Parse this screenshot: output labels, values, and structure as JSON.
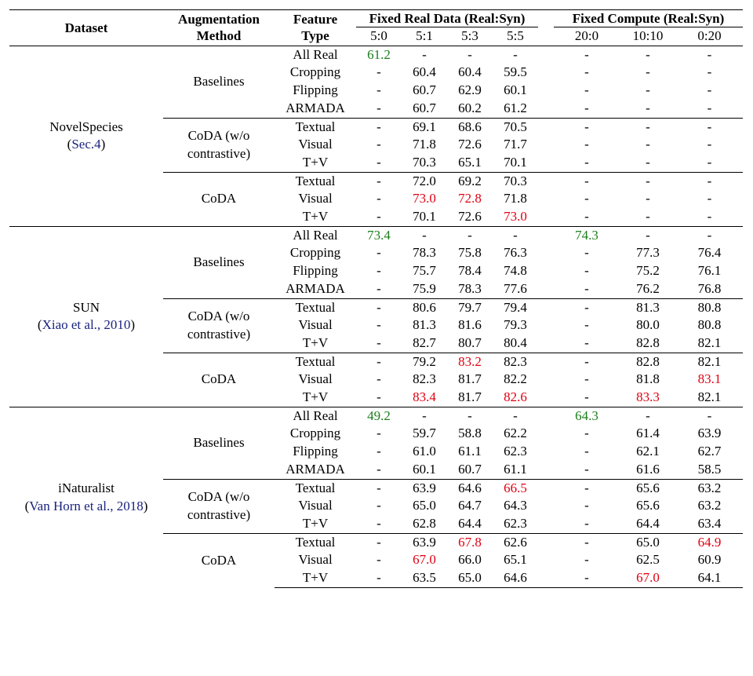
{
  "header": {
    "dataset": "Dataset",
    "augmentation": [
      "Augmentation",
      "Method"
    ],
    "feature": [
      "Feature",
      "Type"
    ],
    "fixed_real": "Fixed Real Data (Real:Syn)",
    "fixed_compute": "Fixed Compute (Real:Syn)",
    "ratios_real": [
      "5:0",
      "5:1",
      "5:3",
      "5:5"
    ],
    "ratios_compute": [
      "20:0",
      "10:10",
      "0:20"
    ]
  },
  "datasets": [
    {
      "name": "NovelSpecies",
      "cite_prefix": "(",
      "cite": "Sec.4",
      "cite_suffix": ")",
      "groups": [
        {
          "method": [
            "Baselines"
          ],
          "rows": [
            {
              "feature": "All Real",
              "cells": [
                {
                  "v": "61.2",
                  "s": "green"
                },
                {
                  "v": "-"
                },
                {
                  "v": "-"
                },
                {
                  "v": "-"
                },
                {
                  "v": "-"
                },
                {
                  "v": "-"
                },
                {
                  "v": "-"
                }
              ]
            },
            {
              "feature": "Cropping",
              "cells": [
                {
                  "v": "-"
                },
                {
                  "v": "60.4"
                },
                {
                  "v": "60.4"
                },
                {
                  "v": "59.5"
                },
                {
                  "v": "-"
                },
                {
                  "v": "-"
                },
                {
                  "v": "-"
                }
              ]
            },
            {
              "feature": "Flipping",
              "cells": [
                {
                  "v": "-"
                },
                {
                  "v": "60.7"
                },
                {
                  "v": "62.9"
                },
                {
                  "v": "60.1"
                },
                {
                  "v": "-"
                },
                {
                  "v": "-"
                },
                {
                  "v": "-"
                }
              ]
            },
            {
              "feature": "ARMADA",
              "cells": [
                {
                  "v": "-"
                },
                {
                  "v": "60.7"
                },
                {
                  "v": "60.2"
                },
                {
                  "v": "61.2"
                },
                {
                  "v": "-"
                },
                {
                  "v": "-"
                },
                {
                  "v": "-"
                }
              ]
            }
          ]
        },
        {
          "method": [
            "CoDA (w/o",
            "contrastive)"
          ],
          "rows": [
            {
              "feature": "Textual",
              "cells": [
                {
                  "v": "-"
                },
                {
                  "v": "69.1"
                },
                {
                  "v": "68.6"
                },
                {
                  "v": "70.5"
                },
                {
                  "v": "-"
                },
                {
                  "v": "-"
                },
                {
                  "v": "-"
                }
              ]
            },
            {
              "feature": "Visual",
              "cells": [
                {
                  "v": "-"
                },
                {
                  "v": "71.8"
                },
                {
                  "v": "72.6"
                },
                {
                  "v": "71.7"
                },
                {
                  "v": "-"
                },
                {
                  "v": "-"
                },
                {
                  "v": "-"
                }
              ]
            },
            {
              "feature": "T+V",
              "cells": [
                {
                  "v": "-"
                },
                {
                  "v": "70.3"
                },
                {
                  "v": "65.1"
                },
                {
                  "v": "70.1"
                },
                {
                  "v": "-"
                },
                {
                  "v": "-"
                },
                {
                  "v": "-"
                }
              ]
            }
          ]
        },
        {
          "method": [
            "CoDA"
          ],
          "rows": [
            {
              "feature": "Textual",
              "cells": [
                {
                  "v": "-"
                },
                {
                  "v": "72.0"
                },
                {
                  "v": "69.2"
                },
                {
                  "v": "70.3"
                },
                {
                  "v": "-"
                },
                {
                  "v": "-"
                },
                {
                  "v": "-"
                }
              ]
            },
            {
              "feature": "Visual",
              "cells": [
                {
                  "v": "-"
                },
                {
                  "v": "73.0",
                  "s": "red"
                },
                {
                  "v": "72.8",
                  "s": "red"
                },
                {
                  "v": "71.8"
                },
                {
                  "v": "-"
                },
                {
                  "v": "-"
                },
                {
                  "v": "-"
                }
              ]
            },
            {
              "feature": "T+V",
              "cells": [
                {
                  "v": "-"
                },
                {
                  "v": "70.1"
                },
                {
                  "v": "72.6"
                },
                {
                  "v": "73.0",
                  "s": "red"
                },
                {
                  "v": "-"
                },
                {
                  "v": "-"
                },
                {
                  "v": "-"
                }
              ]
            }
          ]
        }
      ]
    },
    {
      "name": "SUN",
      "cite_prefix": "(",
      "cite": "Xiao et al., 2010",
      "cite_suffix": ")",
      "groups": [
        {
          "method": [
            "Baselines"
          ],
          "rows": [
            {
              "feature": "All Real",
              "cells": [
                {
                  "v": "73.4",
                  "s": "green"
                },
                {
                  "v": "-"
                },
                {
                  "v": "-"
                },
                {
                  "v": "-"
                },
                {
                  "v": "74.3",
                  "s": "green"
                },
                {
                  "v": "-"
                },
                {
                  "v": "-"
                }
              ]
            },
            {
              "feature": "Cropping",
              "cells": [
                {
                  "v": "-"
                },
                {
                  "v": "78.3"
                },
                {
                  "v": "75.8"
                },
                {
                  "v": "76.3"
                },
                {
                  "v": "-"
                },
                {
                  "v": "77.3"
                },
                {
                  "v": "76.4"
                }
              ]
            },
            {
              "feature": "Flipping",
              "cells": [
                {
                  "v": "-"
                },
                {
                  "v": "75.7"
                },
                {
                  "v": "78.4"
                },
                {
                  "v": "74.8"
                },
                {
                  "v": "-"
                },
                {
                  "v": "75.2"
                },
                {
                  "v": "76.1"
                }
              ]
            },
            {
              "feature": "ARMADA",
              "cells": [
                {
                  "v": "-"
                },
                {
                  "v": "75.9"
                },
                {
                  "v": "78.3"
                },
                {
                  "v": "77.6"
                },
                {
                  "v": "-"
                },
                {
                  "v": "76.2"
                },
                {
                  "v": "76.8"
                }
              ]
            }
          ]
        },
        {
          "method": [
            "CoDA (w/o",
            "contrastive)"
          ],
          "rows": [
            {
              "feature": "Textual",
              "cells": [
                {
                  "v": "-"
                },
                {
                  "v": "80.6"
                },
                {
                  "v": "79.7"
                },
                {
                  "v": "79.4"
                },
                {
                  "v": "-"
                },
                {
                  "v": "81.3"
                },
                {
                  "v": "80.8"
                }
              ]
            },
            {
              "feature": "Visual",
              "cells": [
                {
                  "v": "-"
                },
                {
                  "v": "81.3"
                },
                {
                  "v": "81.6"
                },
                {
                  "v": "79.3"
                },
                {
                  "v": "-"
                },
                {
                  "v": "80.0"
                },
                {
                  "v": "80.8"
                }
              ]
            },
            {
              "feature": "T+V",
              "cells": [
                {
                  "v": "-"
                },
                {
                  "v": "82.7"
                },
                {
                  "v": "80.7"
                },
                {
                  "v": "80.4"
                },
                {
                  "v": "-"
                },
                {
                  "v": "82.8"
                },
                {
                  "v": "82.1"
                }
              ]
            }
          ]
        },
        {
          "method": [
            "CoDA"
          ],
          "rows": [
            {
              "feature": "Textual",
              "cells": [
                {
                  "v": "-"
                },
                {
                  "v": "79.2"
                },
                {
                  "v": "83.2",
                  "s": "red"
                },
                {
                  "v": "82.3"
                },
                {
                  "v": "-"
                },
                {
                  "v": "82.8"
                },
                {
                  "v": "82.1"
                }
              ]
            },
            {
              "feature": "Visual",
              "cells": [
                {
                  "v": "-"
                },
                {
                  "v": "82.3"
                },
                {
                  "v": "81.7"
                },
                {
                  "v": "82.2"
                },
                {
                  "v": "-"
                },
                {
                  "v": "81.8"
                },
                {
                  "v": "83.1",
                  "s": "red"
                }
              ]
            },
            {
              "feature": "T+V",
              "cells": [
                {
                  "v": "-"
                },
                {
                  "v": "83.4",
                  "s": "red"
                },
                {
                  "v": "81.7"
                },
                {
                  "v": "82.6",
                  "s": "red"
                },
                {
                  "v": "-"
                },
                {
                  "v": "83.3",
                  "s": "red"
                },
                {
                  "v": "82.1"
                }
              ]
            }
          ]
        }
      ]
    },
    {
      "name": "iNaturalist",
      "cite_prefix": "(",
      "cite": "Van Horn et al., 2018",
      "cite_suffix": ")",
      "groups": [
        {
          "method": [
            "Baselines"
          ],
          "rows": [
            {
              "feature": "All Real",
              "cells": [
                {
                  "v": "49.2",
                  "s": "green"
                },
                {
                  "v": "-"
                },
                {
                  "v": "-"
                },
                {
                  "v": "-"
                },
                {
                  "v": "64.3",
                  "s": "green"
                },
                {
                  "v": "-"
                },
                {
                  "v": "-"
                }
              ]
            },
            {
              "feature": "Cropping",
              "cells": [
                {
                  "v": "-"
                },
                {
                  "v": "59.7"
                },
                {
                  "v": "58.8"
                },
                {
                  "v": "62.2"
                },
                {
                  "v": "-"
                },
                {
                  "v": "61.4"
                },
                {
                  "v": "63.9"
                }
              ]
            },
            {
              "feature": "Flipping",
              "cells": [
                {
                  "v": "-"
                },
                {
                  "v": "61.0"
                },
                {
                  "v": "61.1"
                },
                {
                  "v": "62.3"
                },
                {
                  "v": "-"
                },
                {
                  "v": "62.1"
                },
                {
                  "v": "62.7"
                }
              ]
            },
            {
              "feature": "ARMADA",
              "cells": [
                {
                  "v": "-"
                },
                {
                  "v": "60.1"
                },
                {
                  "v": "60.7"
                },
                {
                  "v": "61.1"
                },
                {
                  "v": "-"
                },
                {
                  "v": "61.6"
                },
                {
                  "v": "58.5"
                }
              ]
            }
          ]
        },
        {
          "method": [
            "CoDA (w/o",
            "contrastive)"
          ],
          "rows": [
            {
              "feature": "Textual",
              "cells": [
                {
                  "v": "-"
                },
                {
                  "v": "63.9"
                },
                {
                  "v": "64.6"
                },
                {
                  "v": "66.5",
                  "s": "red"
                },
                {
                  "v": "-"
                },
                {
                  "v": "65.6"
                },
                {
                  "v": "63.2"
                }
              ]
            },
            {
              "feature": "Visual",
              "cells": [
                {
                  "v": "-"
                },
                {
                  "v": "65.0"
                },
                {
                  "v": "64.7"
                },
                {
                  "v": "64.3"
                },
                {
                  "v": "-"
                },
                {
                  "v": "65.6"
                },
                {
                  "v": "63.2"
                }
              ]
            },
            {
              "feature": "T+V",
              "cells": [
                {
                  "v": "-"
                },
                {
                  "v": "62.8"
                },
                {
                  "v": "64.4"
                },
                {
                  "v": "62.3"
                },
                {
                  "v": "-"
                },
                {
                  "v": "64.4"
                },
                {
                  "v": "63.4"
                }
              ]
            }
          ]
        },
        {
          "method": [
            "CoDA"
          ],
          "rows": [
            {
              "feature": "Textual",
              "cells": [
                {
                  "v": "-"
                },
                {
                  "v": "63.9"
                },
                {
                  "v": "67.8",
                  "s": "red"
                },
                {
                  "v": "62.6"
                },
                {
                  "v": "-"
                },
                {
                  "v": "65.0"
                },
                {
                  "v": "64.9",
                  "s": "red"
                }
              ]
            },
            {
              "feature": "Visual",
              "cells": [
                {
                  "v": "-"
                },
                {
                  "v": "67.0",
                  "s": "red"
                },
                {
                  "v": "66.0"
                },
                {
                  "v": "65.1"
                },
                {
                  "v": "-"
                },
                {
                  "v": "62.5"
                },
                {
                  "v": "60.9"
                }
              ]
            },
            {
              "feature": "T+V",
              "cells": [
                {
                  "v": "-"
                },
                {
                  "v": "63.5"
                },
                {
                  "v": "65.0"
                },
                {
                  "v": "64.6"
                },
                {
                  "v": "-"
                },
                {
                  "v": "67.0",
                  "s": "red"
                },
                {
                  "v": "64.1"
                }
              ]
            }
          ]
        }
      ]
    }
  ],
  "colors": {
    "best": "#e00012",
    "real_reference": "#1b7d1b",
    "citation": "#1a237e"
  }
}
